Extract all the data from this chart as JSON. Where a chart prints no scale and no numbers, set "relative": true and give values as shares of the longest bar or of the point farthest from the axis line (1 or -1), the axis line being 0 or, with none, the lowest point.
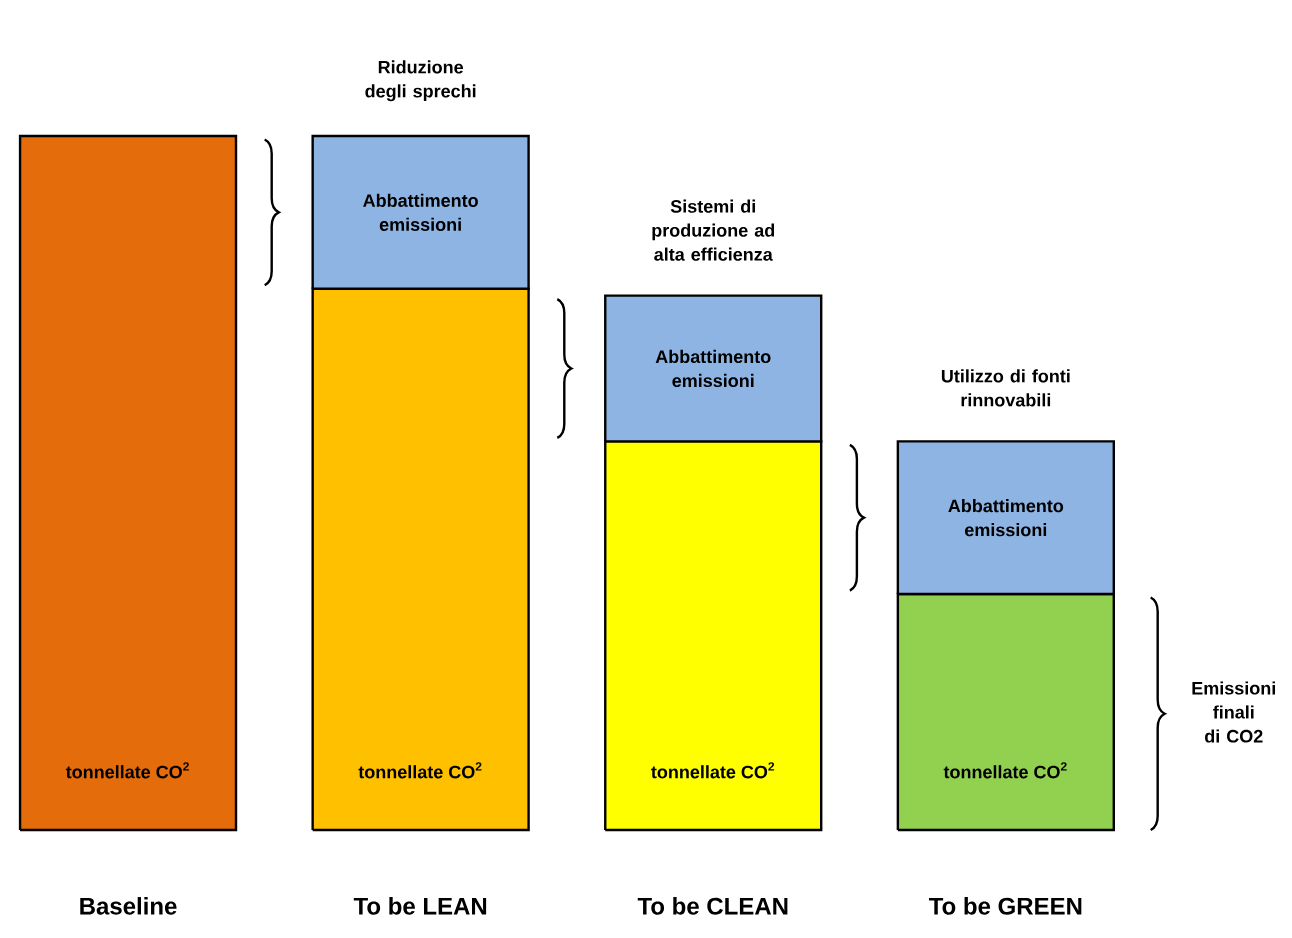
{
  "chart_data": {
    "type": "bar",
    "relative": true,
    "stacked": true,
    "categories": [
      "Baseline",
      "To be LEAN",
      "To be CLEAN",
      "To be GREEN"
    ],
    "series": [
      {
        "colors": [
          "#e46c0a",
          "#ffc000",
          "#ffff00",
          "#92d050"
        ],
        "values": [
          1,
          0.78,
          0.56,
          0.34
        ]
      },
      {
        "color": "#8eb4e3",
        "values": [
          null,
          0.22,
          0.21,
          0.22
        ]
      }
    ],
    "annotations": [
      "tonnellate CO$^{2}$",
      "tonnellate CO$^{2}$",
      "tonnellate CO$^{2}$",
      "tonnellate CO$^{2}$",
      "Abbattimento emissioni",
      "Abbattimento emissioni",
      "Abbattimento emissioni",
      "Riduzione degli sprechi",
      "Sistemi di produzione ad alta efficienza",
      "Utilizzo di fonti rinnovabili",
      "Emissioni finali di CO2"
    ]
  }
}
